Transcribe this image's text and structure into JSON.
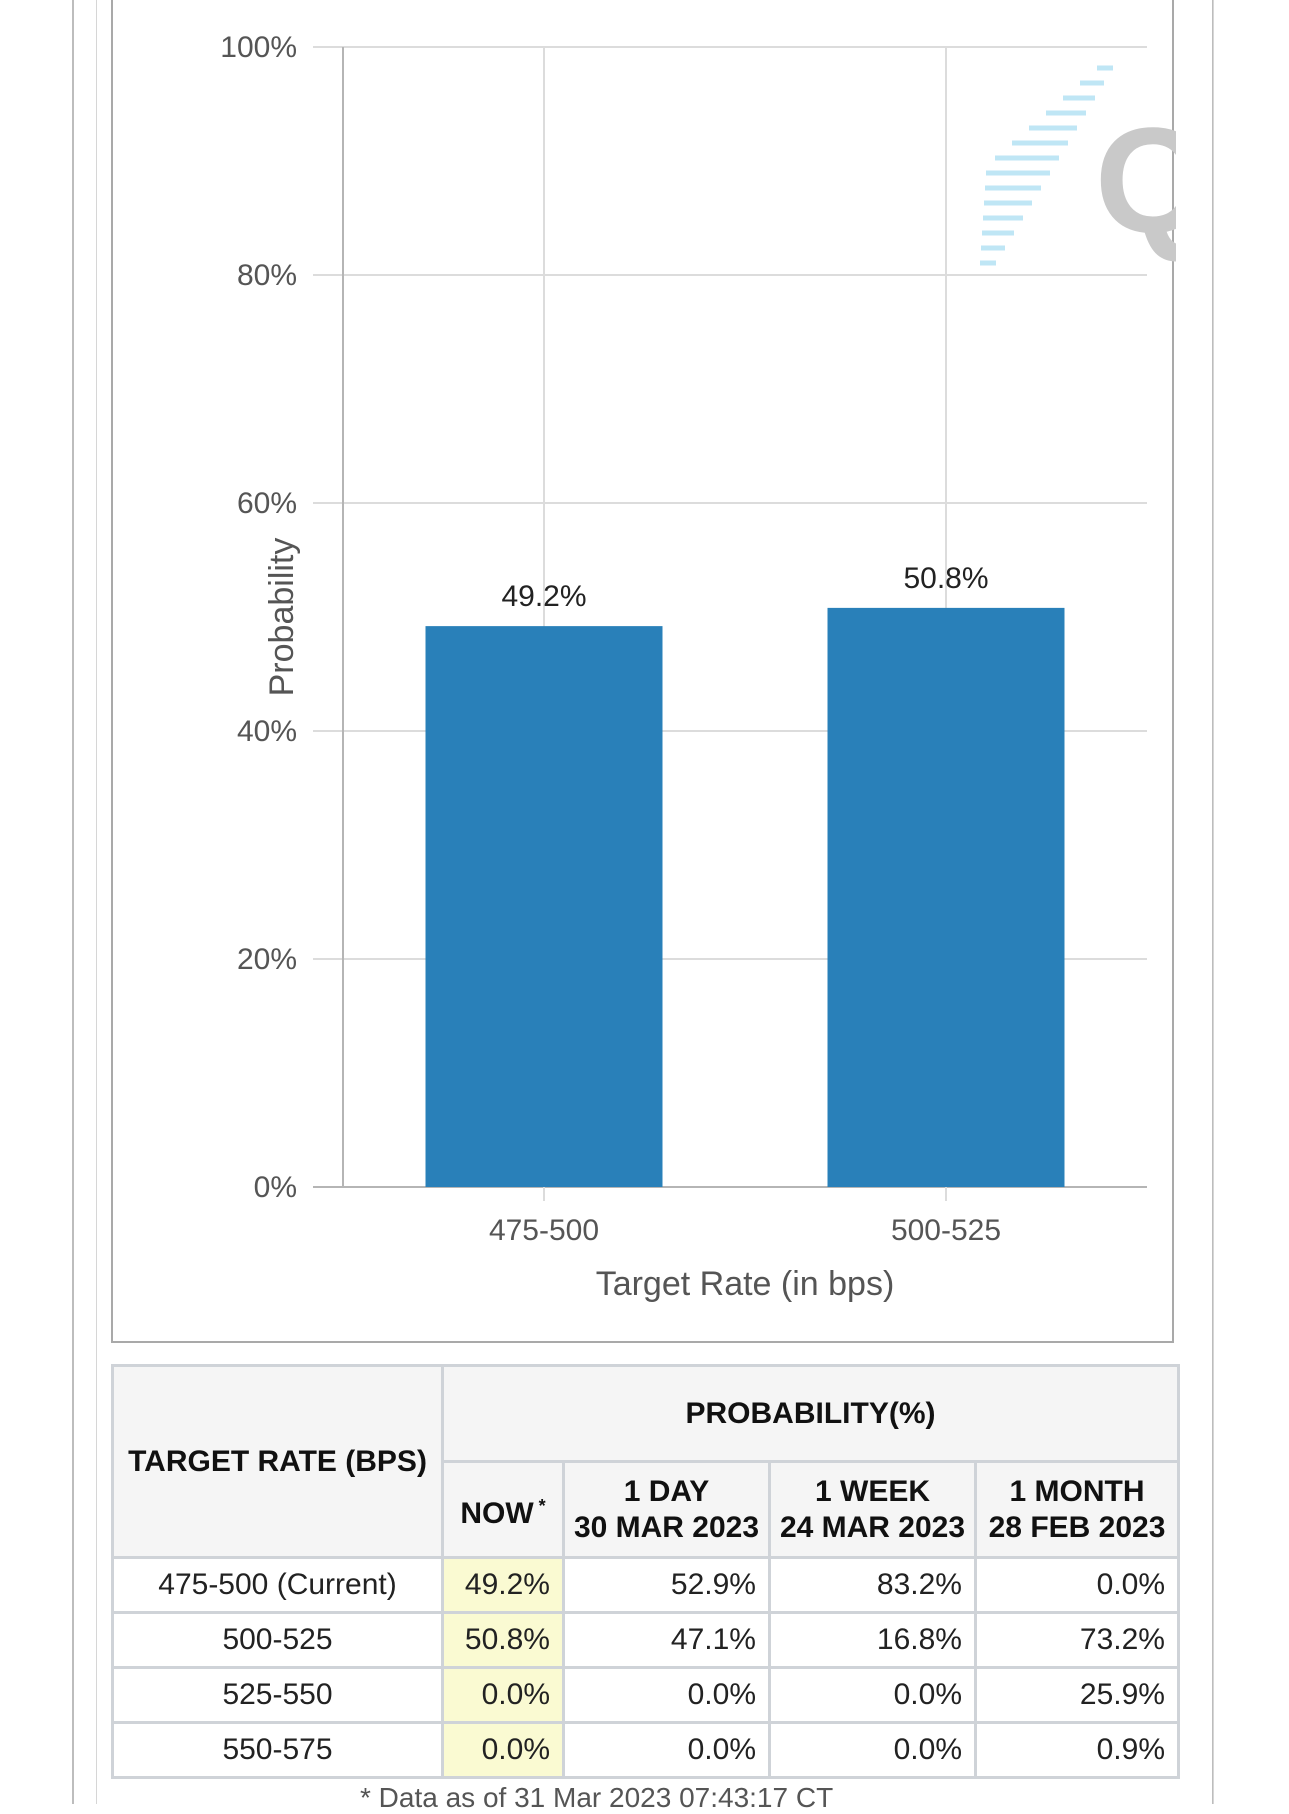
{
  "chart_data": {
    "type": "bar",
    "categories": [
      "475-500",
      "500-525"
    ],
    "values": [
      49.2,
      50.8
    ],
    "data_labels": [
      "49.2%",
      "50.8%"
    ],
    "xlabel": "Target Rate (in bps)",
    "ylabel": "Probability",
    "ylim": [
      0,
      100
    ],
    "yticks": [
      "0%",
      "20%",
      "40%",
      "60%",
      "80%",
      "100%"
    ],
    "bar_color": "#2980b9",
    "grid": true
  },
  "logo": {
    "icon": "quikstrike-q-logo",
    "letter": "Q"
  },
  "table": {
    "header_rate": "TARGET RATE (BPS)",
    "header_prob": "PROBABILITY(%)",
    "columns": [
      {
        "line1": "NOW",
        "line2": "",
        "star": "*"
      },
      {
        "line1": "1 DAY",
        "line2": "30 MAR 2023",
        "star": ""
      },
      {
        "line1": "1 WEEK",
        "line2": "24 MAR 2023",
        "star": ""
      },
      {
        "line1": "1 MONTH",
        "line2": "28 FEB 2023",
        "star": ""
      }
    ],
    "rows": [
      {
        "rate": "475-500 (Current)",
        "values": [
          "49.2%",
          "52.9%",
          "83.2%",
          "0.0%"
        ]
      },
      {
        "rate": "500-525",
        "values": [
          "50.8%",
          "47.1%",
          "16.8%",
          "73.2%"
        ]
      },
      {
        "rate": "525-550",
        "values": [
          "0.0%",
          "0.0%",
          "0.0%",
          "25.9%"
        ]
      },
      {
        "rate": "550-575",
        "values": [
          "0.0%",
          "0.0%",
          "0.0%",
          "0.9%"
        ]
      }
    ],
    "highlight_color": "#fafad2"
  },
  "footnote": "* Data as of 31 Mar 2023 07:43:17 CT"
}
